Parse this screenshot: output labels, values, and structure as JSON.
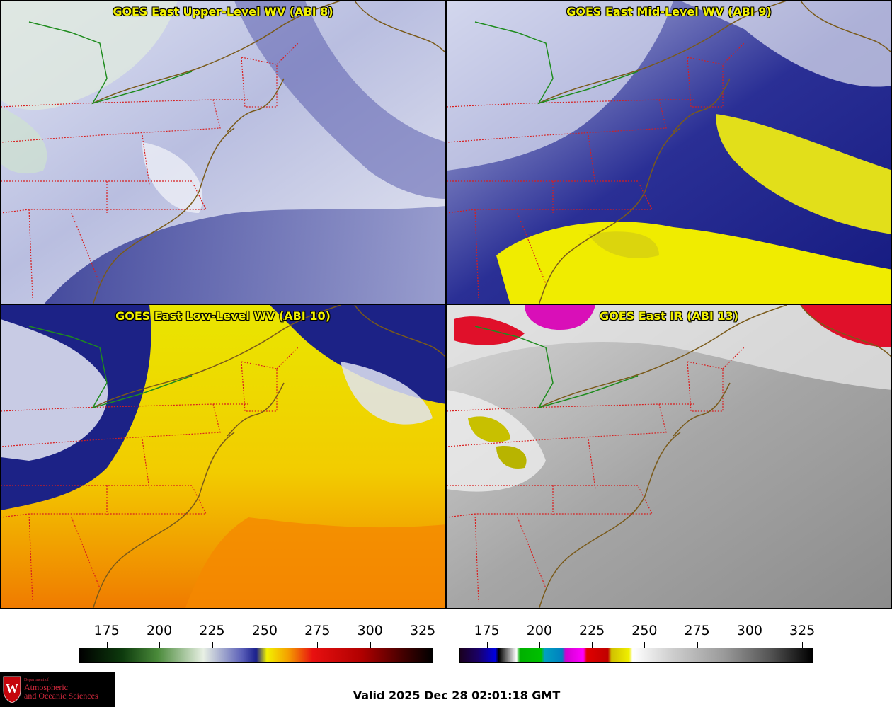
{
  "panels": [
    {
      "title": "GOES East Upper-Level WV (ABI 8)",
      "band": "ABI 8",
      "product": "Upper-Level Water Vapor"
    },
    {
      "title": "GOES East Mid-Level WV (ABI 9)",
      "band": "ABI 9",
      "product": "Mid-Level Water Vapor"
    },
    {
      "title": "GOES East Low-Level WV (ABI 10)",
      "band": "ABI 10",
      "product": "Low-Level Water Vapor"
    },
    {
      "title": "GOES East IR (ABI 13)",
      "band": "ABI 13",
      "product": "Infrared"
    }
  ],
  "colorbars": {
    "water_vapor": {
      "ticks": [
        "175",
        "200",
        "225",
        "250",
        "275",
        "300",
        "325"
      ],
      "range": [
        162,
        330
      ],
      "tick_values": [
        175,
        200,
        225,
        250,
        275,
        300,
        325
      ]
    },
    "infrared": {
      "ticks": [
        "175",
        "200",
        "225",
        "250",
        "275",
        "300",
        "325"
      ],
      "range": [
        162,
        330
      ],
      "tick_values": [
        175,
        200,
        225,
        250,
        275,
        300,
        325
      ]
    }
  },
  "colors": {
    "wv_dry": "#f2f200",
    "wv_moist": "#1a1f8c",
    "wv_cloud": "#e8ecf4",
    "ir_warm": "#7a7a7a",
    "ir_cold": "#e6e6e6",
    "state_borders": "#d81e1e",
    "coastlines": "#7a5a1a",
    "lake_line": "#1e8c1e"
  },
  "logo": {
    "emblem_letter": "W",
    "dept_line": "Department of",
    "line1": "Atmospheric",
    "line2": "and Oceanic Sciences"
  },
  "footer": {
    "valid_text": "Valid 2025 Dec 28 02:01:18 GMT"
  }
}
